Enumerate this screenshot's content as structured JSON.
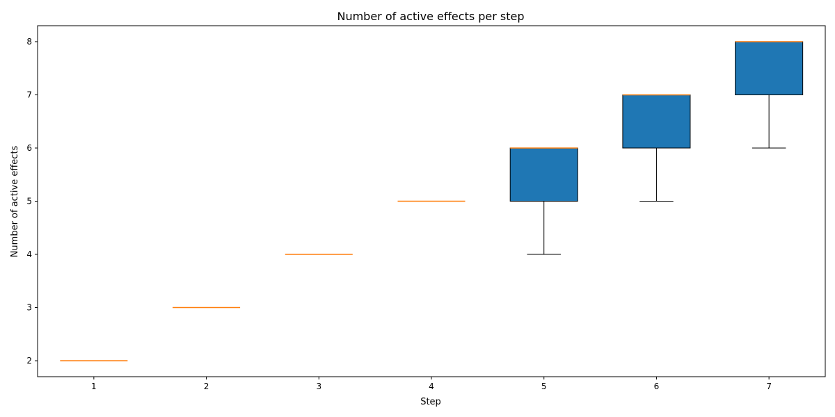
{
  "chart_data": {
    "type": "boxplot",
    "title": "Number of active effects per step",
    "xlabel": "Step",
    "ylabel": "Number of active effects",
    "categories": [
      "1",
      "2",
      "3",
      "4",
      "5",
      "6",
      "7"
    ],
    "x_ticks": [
      "1",
      "2",
      "3",
      "4",
      "5",
      "6",
      "7"
    ],
    "y_ticks": [
      "2",
      "3",
      "4",
      "5",
      "6",
      "7",
      "8"
    ],
    "ylim": [
      1.7,
      8.3
    ],
    "grid": false,
    "legend": "none",
    "boxes": [
      {
        "step": 1,
        "whisker_low": 2,
        "q1": 2,
        "median": 2,
        "q3": 2,
        "whisker_high": 2
      },
      {
        "step": 2,
        "whisker_low": 3,
        "q1": 3,
        "median": 3,
        "q3": 3,
        "whisker_high": 3
      },
      {
        "step": 3,
        "whisker_low": 4,
        "q1": 4,
        "median": 4,
        "q3": 4,
        "whisker_high": 4
      },
      {
        "step": 4,
        "whisker_low": 5,
        "q1": 5,
        "median": 5,
        "q3": 5,
        "whisker_high": 5
      },
      {
        "step": 5,
        "whisker_low": 4,
        "q1": 5,
        "median": 6,
        "q3": 6,
        "whisker_high": 6
      },
      {
        "step": 6,
        "whisker_low": 5,
        "q1": 6,
        "median": 7,
        "q3": 7,
        "whisker_high": 7
      },
      {
        "step": 7,
        "whisker_low": 6,
        "q1": 7,
        "median": 8,
        "q3": 8,
        "whisker_high": 8
      }
    ],
    "colors": {
      "box_fill": "#1f77b4",
      "box_edge": "#000000",
      "median": "#ff7f0e",
      "whisker": "#000000"
    }
  }
}
